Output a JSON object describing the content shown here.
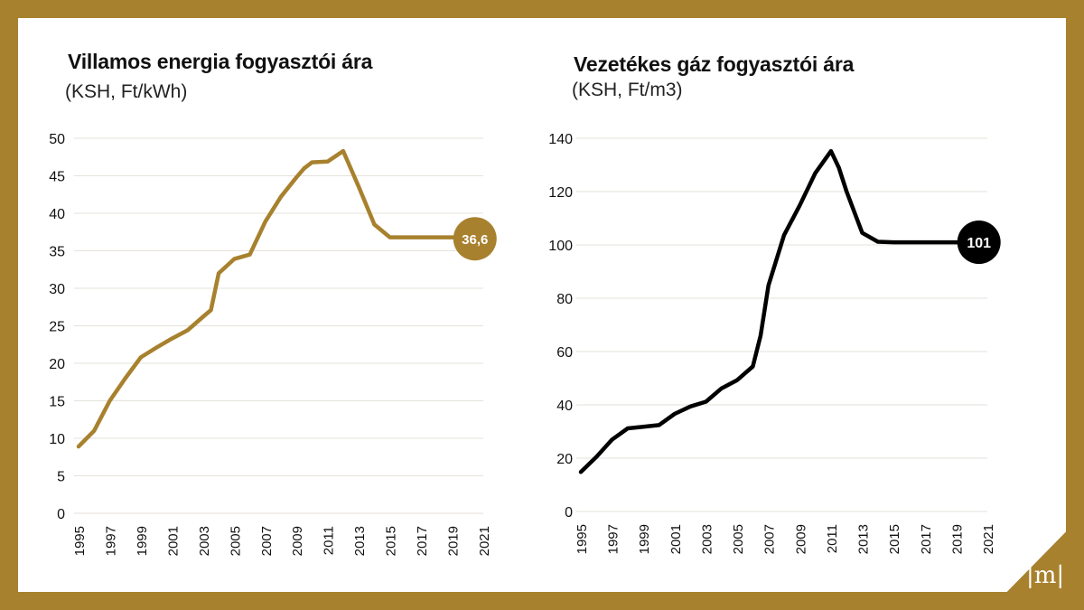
{
  "colors": {
    "frame": "#a8812e",
    "electricity_line": "#a8812e",
    "gas_line": "#000000",
    "grid": "#e6e2da",
    "tick_text": "#111111"
  },
  "logo": {
    "text": "|m|"
  },
  "chart_data": [
    {
      "type": "line",
      "title": "Villamos energia fogyasztói ára",
      "subtitle": "(KSH, Ft/kWh)",
      "xlabel": "",
      "ylabel": "",
      "xlim": [
        1995,
        2021
      ],
      "ylim": [
        0,
        50
      ],
      "x_ticks": [
        "1995",
        "1997",
        "1999",
        "2001",
        "2003",
        "2005",
        "2007",
        "2009",
        "2011",
        "2013",
        "2015",
        "2017",
        "2019",
        "2021"
      ],
      "y_ticks": [
        "0",
        "5",
        "10",
        "15",
        "20",
        "25",
        "30",
        "35",
        "40",
        "45",
        "50"
      ],
      "grid": true,
      "series": [
        {
          "x": [
            1995,
            1996,
            1997,
            1998,
            1999,
            2000,
            2001,
            2002,
            2003,
            2003.5,
            2004,
            2005,
            2006,
            2007,
            2008,
            2009,
            2009.5,
            2010,
            2011,
            2012,
            2013,
            2014,
            2015,
            2016,
            2017,
            2018,
            2019,
            2020
          ],
          "y": [
            8.9,
            11,
            15,
            18,
            20.8,
            22.1,
            23.3,
            24.4,
            26.2,
            27.1,
            32,
            33.9,
            34.5,
            38.9,
            42.2,
            44.8,
            46,
            46.8,
            46.9,
            48.3,
            43.5,
            38.5,
            36.8,
            36.8,
            36.8,
            36.8,
            36.8,
            36.6
          ]
        }
      ],
      "end_label": {
        "text": "36,6",
        "x": 2020,
        "y": 36.6
      }
    },
    {
      "type": "line",
      "title": "Vezetékes gáz fogyasztói ára",
      "subtitle": "(KSH, Ft/m3)",
      "xlabel": "",
      "ylabel": "",
      "xlim": [
        1995,
        2021
      ],
      "ylim": [
        0,
        140
      ],
      "x_ticks": [
        "1995",
        "1997",
        "1999",
        "2001",
        "2003",
        "2005",
        "2007",
        "2009",
        "2011",
        "2013",
        "2015",
        "2017",
        "2019",
        "2021"
      ],
      "y_ticks": [
        "0",
        "20",
        "40",
        "60",
        "80",
        "100",
        "120",
        "140"
      ],
      "grid": true,
      "series": [
        {
          "x": [
            1995,
            1996,
            1997,
            1998,
            1999,
            2000,
            2001,
            2002,
            2003,
            2004,
            2005,
            2006,
            2006.5,
            2007,
            2008,
            2009,
            2010,
            2011,
            2011.5,
            2012,
            2013,
            2014,
            2015,
            2016,
            2017,
            2018,
            2019,
            2020
          ],
          "y": [
            14.8,
            20.5,
            27,
            31.2,
            31.8,
            32.4,
            36.6,
            39.4,
            41.2,
            46.2,
            49.3,
            54.4,
            66,
            84.8,
            103.7,
            114.8,
            127,
            135.2,
            129,
            120,
            104.5,
            101.2,
            101,
            101,
            101,
            101,
            101,
            101
          ]
        }
      ],
      "end_label": {
        "text": "101",
        "x": 2020,
        "y": 101
      }
    }
  ]
}
